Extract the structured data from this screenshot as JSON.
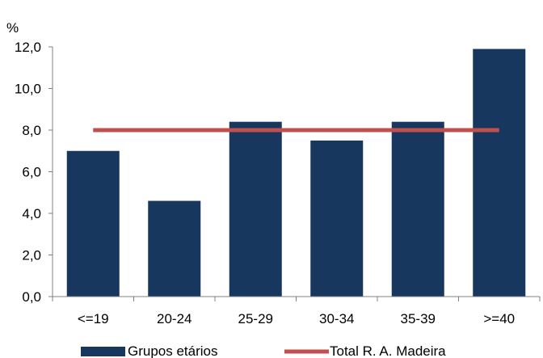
{
  "chart_data": {
    "type": "bar",
    "unit_label": "%",
    "categories": [
      "<=19",
      "20-24",
      "25-29",
      "30-34",
      "35-39",
      ">=40"
    ],
    "series": [
      {
        "name": "Grupos etários",
        "type": "bar",
        "color": "#17375e",
        "values": [
          7.0,
          4.6,
          8.4,
          7.5,
          8.4,
          11.9
        ]
      },
      {
        "name": "Total R. A. Madeira",
        "type": "line",
        "color": "#c0504d",
        "value": 8.0
      }
    ],
    "ylim": [
      0,
      12
    ],
    "yticks": [
      "0,0",
      "2,0",
      "4,0",
      "6,0",
      "8,0",
      "10,0",
      "12,0"
    ],
    "grid": false,
    "legend_position": "bottom"
  }
}
